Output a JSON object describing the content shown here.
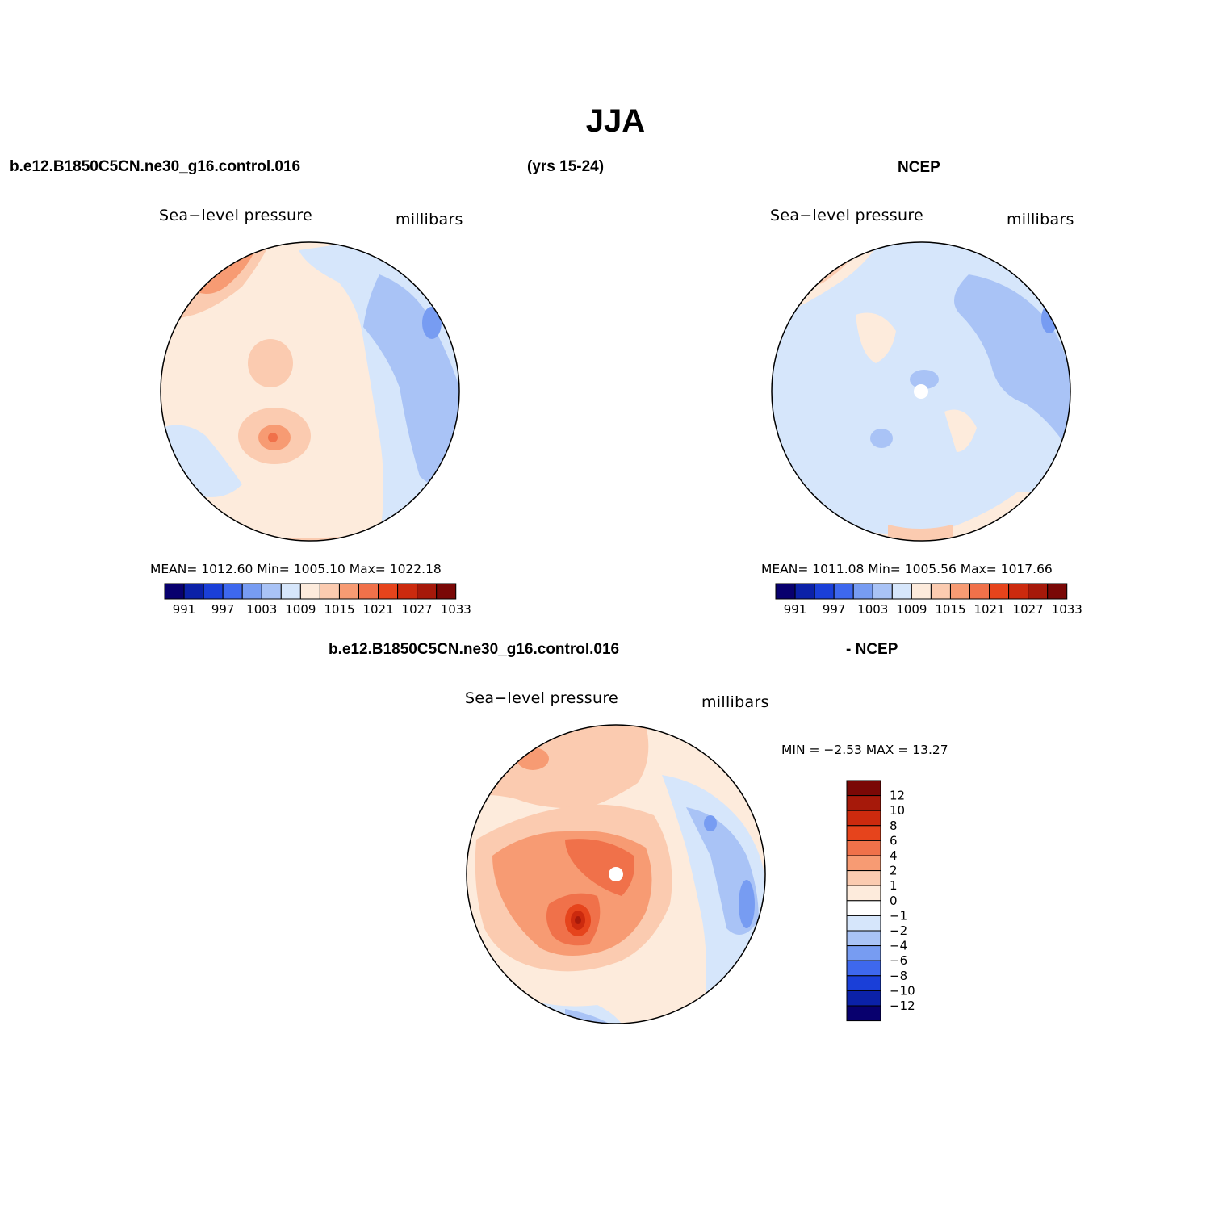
{
  "page": {
    "title": "JJA",
    "header_left": "b.e12.B1850C5CN.ne30_g16.control.016",
    "header_mid": "(yrs 15-24)",
    "header_right": "NCEP",
    "diff_header_left": "b.e12.B1850C5CN.ne30_g16.control.016",
    "diff_header_right": "- NCEP"
  },
  "panels": {
    "model": {
      "variable": "Sea−level pressure",
      "units": "millibars",
      "stats": "MEAN=  1012.60    Min=  1005.10    Max=  1022.18"
    },
    "obs": {
      "variable": "Sea−level pressure",
      "units": "millibars",
      "stats": "MEAN=  1011.08    Min=  1005.56    Max=  1017.66"
    },
    "diff": {
      "variable": "Sea−level pressure",
      "units": "millibars",
      "stats": "MIN =    −2.53  MAX =    13.27"
    }
  },
  "colorbar_abs": {
    "labels": [
      "991",
      "997",
      "1003",
      "1009",
      "1015",
      "1021",
      "1027",
      "1033"
    ],
    "colors": [
      "#08006e",
      "#0b21a8",
      "#1a3fd8",
      "#3e68ee",
      "#779cf2",
      "#a9c3f6",
      "#d6e6fb",
      "#fdebdc",
      "#fbcbb0",
      "#f79b73",
      "#f0714a",
      "#e6441c",
      "#cc2a0e",
      "#a6190a",
      "#7a0806"
    ]
  },
  "colorbar_diff": {
    "labels": [
      "12",
      "10",
      "8",
      "6",
      "4",
      "2",
      "1",
      "0",
      "−1",
      "−2",
      "−4",
      "−6",
      "−8",
      "−10",
      "−12"
    ],
    "colors": [
      "#7a0806",
      "#a6190a",
      "#cc2a0e",
      "#e6441c",
      "#f0714a",
      "#f79b73",
      "#fbcbb0",
      "#fdebdc",
      "#ffffff",
      "#d6e6fb",
      "#a9c3f6",
      "#779cf2",
      "#3e68ee",
      "#1a3fd8",
      "#0b21a8",
      "#08006e"
    ]
  }
}
